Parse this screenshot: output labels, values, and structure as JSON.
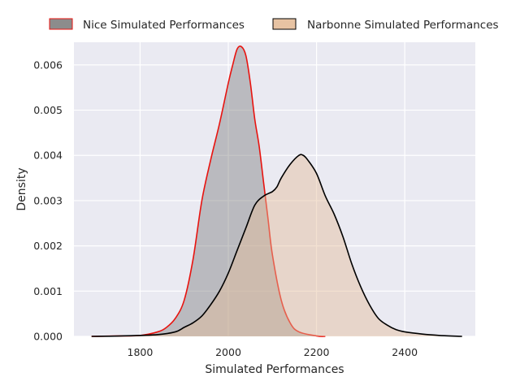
{
  "chart_data": {
    "type": "area",
    "xlabel": "Simulated Performances",
    "ylabel": "Density",
    "xlim": [
      1650,
      2560
    ],
    "ylim": [
      0,
      0.0065
    ],
    "xticks": [
      1800,
      2000,
      2200,
      2400
    ],
    "xtick_labels": [
      "1800",
      "2000",
      "2200",
      "2400"
    ],
    "yticks": [
      0.0,
      0.001,
      0.002,
      0.003,
      0.004,
      0.005,
      0.006
    ],
    "ytick_labels": [
      "0.000",
      "0.001",
      "0.002",
      "0.003",
      "0.004",
      "0.005",
      "0.006"
    ],
    "grid": true,
    "legend_position": "top-center",
    "series": [
      {
        "name": "Nice Simulated Performances",
        "fill": "#808080",
        "fill_opacity": 0.45,
        "line": "#e8130f",
        "points": [
          [
            1690,
            0.0
          ],
          [
            1760,
            1e-05
          ],
          [
            1800,
            2e-05
          ],
          [
            1840,
            0.0001
          ],
          [
            1860,
            0.0002
          ],
          [
            1880,
            0.0004
          ],
          [
            1900,
            0.0008
          ],
          [
            1920,
            0.0017
          ],
          [
            1940,
            0.003
          ],
          [
            1960,
            0.0039
          ],
          [
            1980,
            0.0047
          ],
          [
            2000,
            0.0056
          ],
          [
            2010,
            0.006
          ],
          [
            2020,
            0.00635
          ],
          [
            2030,
            0.0064
          ],
          [
            2040,
            0.0062
          ],
          [
            2050,
            0.0056
          ],
          [
            2060,
            0.0048
          ],
          [
            2070,
            0.0042
          ],
          [
            2080,
            0.0034
          ],
          [
            2090,
            0.0026
          ],
          [
            2100,
            0.0018
          ],
          [
            2120,
            0.0008
          ],
          [
            2140,
            0.0003
          ],
          [
            2160,
            0.0001
          ],
          [
            2200,
            1e-05
          ],
          [
            2220,
            0.0
          ]
        ]
      },
      {
        "name": "Narbonne Simulated Performances",
        "fill": "#e4bc99",
        "fill_opacity": 0.45,
        "line": "#000000",
        "points": [
          [
            1690,
            0.0
          ],
          [
            1760,
            1e-05
          ],
          [
            1840,
            4e-05
          ],
          [
            1880,
            0.0001
          ],
          [
            1900,
            0.0002
          ],
          [
            1920,
            0.0003
          ],
          [
            1940,
            0.00045
          ],
          [
            1960,
            0.0007
          ],
          [
            1980,
            0.001
          ],
          [
            2000,
            0.0014
          ],
          [
            2020,
            0.0019
          ],
          [
            2040,
            0.0024
          ],
          [
            2060,
            0.0029
          ],
          [
            2080,
            0.0031
          ],
          [
            2100,
            0.0032
          ],
          [
            2110,
            0.0033
          ],
          [
            2120,
            0.0035
          ],
          [
            2140,
            0.0038
          ],
          [
            2160,
            0.004
          ],
          [
            2170,
            0.004
          ],
          [
            2180,
            0.0039
          ],
          [
            2200,
            0.0036
          ],
          [
            2220,
            0.0031
          ],
          [
            2240,
            0.0027
          ],
          [
            2260,
            0.0022
          ],
          [
            2280,
            0.0016
          ],
          [
            2300,
            0.0011
          ],
          [
            2320,
            0.0007
          ],
          [
            2340,
            0.0004
          ],
          [
            2360,
            0.00025
          ],
          [
            2380,
            0.00015
          ],
          [
            2400,
            0.0001
          ],
          [
            2440,
            5e-05
          ],
          [
            2480,
            2e-05
          ],
          [
            2530,
            0.0
          ]
        ]
      }
    ]
  }
}
